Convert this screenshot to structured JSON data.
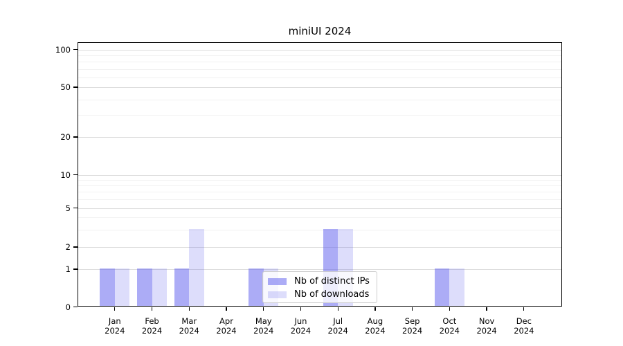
{
  "chart_data": {
    "type": "bar",
    "title": "miniUI 2024",
    "categories": [
      "Jan",
      "Feb",
      "Mar",
      "Apr",
      "May",
      "Jun",
      "Jul",
      "Aug",
      "Sep",
      "Oct",
      "Nov",
      "Dec"
    ],
    "x_year": "2024",
    "series": [
      {
        "name": "Nb of distinct IPs",
        "color": "rgba(95,95,238,0.52)",
        "values": [
          1,
          1,
          1,
          0,
          1,
          0,
          3,
          0,
          0,
          1,
          0,
          0
        ]
      },
      {
        "name": "Nb of downloads",
        "color": "rgba(95,95,238,0.21)",
        "values": [
          1,
          1,
          3,
          0,
          1,
          0,
          3,
          0,
          0,
          1,
          0,
          0
        ]
      }
    ],
    "y_ticks": [
      0,
      1,
      2,
      5,
      10,
      20,
      50,
      100
    ],
    "y_minor_gridlines": [
      3,
      4,
      6,
      7,
      8,
      9,
      30,
      40,
      60,
      70,
      80,
      90
    ],
    "ylim": [
      0,
      100
    ],
    "yscale": "log-like",
    "grid": "horizontal",
    "legend": {
      "position": "lower-center",
      "entries": [
        "Nb of distinct IPs",
        "Nb of downloads"
      ]
    },
    "colors": {
      "major_grid": "#dcdcdc",
      "minor_grid": "#f1f1f1",
      "axis": "#000000",
      "text": "#000000",
      "legend_border": "#cccccc",
      "legend_bg": "rgba(255,255,255,0.8)"
    }
  }
}
